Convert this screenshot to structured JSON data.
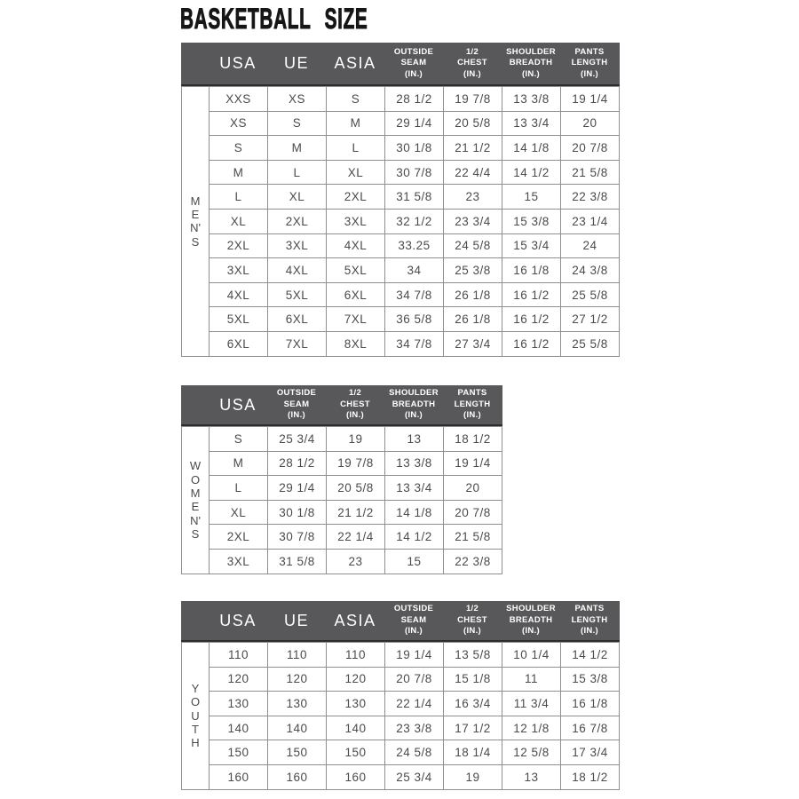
{
  "page": {
    "title": "BASKETBALL SIZE"
  },
  "colors": {
    "page_bg": "#ffffff",
    "title": "#161616",
    "header_bg": "#58585a",
    "header_text": "#ffffff",
    "header_bottom_border": "#2c2c2e",
    "grid_border": "#8f8f8f",
    "body_text": "#4b4b4d"
  },
  "tables": [
    {
      "group_label": "MEN'S",
      "columns": [
        "USA",
        "UE",
        "ASIA",
        "OUTSIDE\nSEAM\n(IN.)",
        "1/2\nCHEST\n(IN.)",
        "SHOULDER\nBREADTH\n(IN.)",
        "PANTS\nLENGTH\n(IN.)"
      ],
      "rows": [
        [
          "XXS",
          "XS",
          "S",
          "28 1/2",
          "19 7/8",
          "13 3/8",
          "19 1/4"
        ],
        [
          "XS",
          "S",
          "M",
          "29 1/4",
          "20 5/8",
          "13 3/4",
          "20"
        ],
        [
          "S",
          "M",
          "L",
          "30 1/8",
          "21 1/2",
          "14 1/8",
          "20 7/8"
        ],
        [
          "M",
          "L",
          "XL",
          "30 7/8",
          "22 4/4",
          "14 1/2",
          "21 5/8"
        ],
        [
          "L",
          "XL",
          "2XL",
          "31 5/8",
          "23",
          "15",
          "22 3/8"
        ],
        [
          "XL",
          "2XL",
          "3XL",
          "32 1/2",
          "23 3/4",
          "15 3/8",
          "23 1/4"
        ],
        [
          "2XL",
          "3XL",
          "4XL",
          "33.25",
          "24 5/8",
          "15 3/4",
          "24"
        ],
        [
          "3XL",
          "4XL",
          "5XL",
          "34",
          "25 3/8",
          "16 1/8",
          "24 3/8"
        ],
        [
          "4XL",
          "5XL",
          "6XL",
          "34 7/8",
          "26 1/8",
          "16 1/2",
          "25 5/8"
        ],
        [
          "5XL",
          "6XL",
          "7XL",
          "36 5/8",
          "26 1/8",
          "16 1/2",
          "27 1/2"
        ],
        [
          "6XL",
          "7XL",
          "8XL",
          "34 7/8",
          "27 3/4",
          "16 1/2",
          "25 5/8"
        ]
      ]
    },
    {
      "group_label": "WOMEN'S",
      "columns": [
        "USA",
        "OUTSIDE\nSEAM\n(IN.)",
        "1/2\nCHEST\n(IN.)",
        "SHOULDER\nBREADTH\n(IN.)",
        "PANTS\nLENGTH\n(IN.)"
      ],
      "rows": [
        [
          "S",
          "25 3/4",
          "19",
          "13",
          "18 1/2"
        ],
        [
          "M",
          "28 1/2",
          "19 7/8",
          "13 3/8",
          "19 1/4"
        ],
        [
          "L",
          "29 1/4",
          "20 5/8",
          "13 3/4",
          "20"
        ],
        [
          "XL",
          "30 1/8",
          "21 1/2",
          "14 1/8",
          "20 7/8"
        ],
        [
          "2XL",
          "30 7/8",
          "22 1/4",
          "14 1/2",
          "21 5/8"
        ],
        [
          "3XL",
          "31 5/8",
          "23",
          "15",
          "22 3/8"
        ]
      ]
    },
    {
      "group_label": "YOUTH",
      "columns": [
        "USA",
        "UE",
        "ASIA",
        "OUTSIDE\nSEAM\n(IN.)",
        "1/2\nCHEST\n(IN.)",
        "SHOULDER\nBREADTH\n(IN.)",
        "PANTS\nLENGTH\n(IN.)"
      ],
      "rows": [
        [
          "110",
          "110",
          "110",
          "19 1/4",
          "13 5/8",
          "10 1/4",
          "14 1/2"
        ],
        [
          "120",
          "120",
          "120",
          "20 7/8",
          "15 1/8",
          "11",
          "15 3/8"
        ],
        [
          "130",
          "130",
          "130",
          "22 1/4",
          "16 3/4",
          "11 3/4",
          "16 1/8"
        ],
        [
          "140",
          "140",
          "140",
          "23 3/8",
          "17 1/2",
          "12 1/8",
          "16 7/8"
        ],
        [
          "150",
          "150",
          "150",
          "24 5/8",
          "18 1/4",
          "12 5/8",
          "17 3/4"
        ],
        [
          "160",
          "160",
          "160",
          "25 3/4",
          "19",
          "13",
          "18 1/2"
        ]
      ]
    }
  ]
}
